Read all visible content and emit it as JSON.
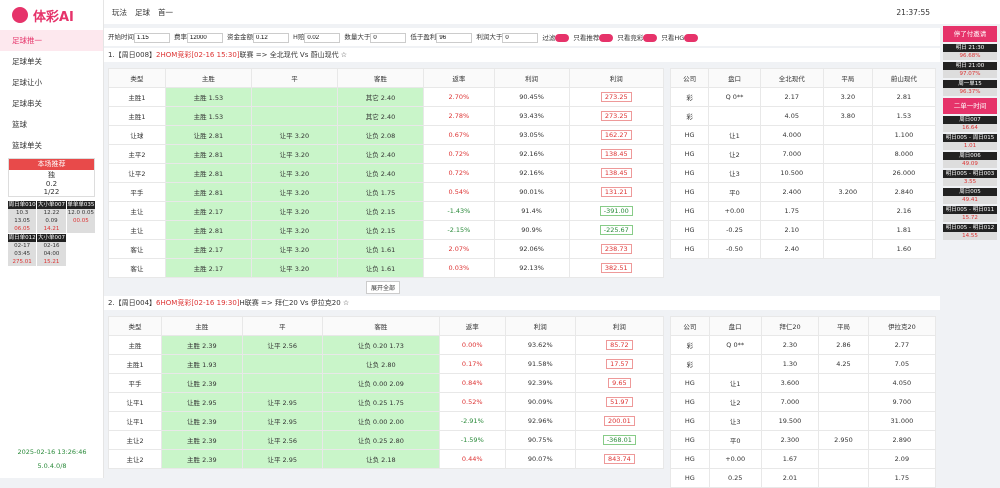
{
  "sidebar": {
    "logo": "体彩AI",
    "menu": [
      "足球推一",
      "足球单关",
      "足球让小",
      "足球串关",
      "篮球",
      "篮球单关"
    ],
    "panel_title": "本场推荐",
    "panel_lines": [
      "独",
      "0.2",
      "1/22"
    ],
    "cards": [
      {
        "title": "周日单010",
        "lines": [
          "10.3 13.05",
          "06.05"
        ]
      },
      {
        "title": "大小单007",
        "lines": [
          "12.22 0.09",
          "14.21"
        ]
      },
      {
        "title": "单单单035",
        "lines": [
          "12.0 0.05",
          "00.05"
        ]
      },
      {
        "title": "周日单012",
        "lines": [
          "02-17 03:45",
          "275.01"
        ]
      },
      {
        "title": "大小单007",
        "lines": [
          "02-16 04:00",
          "15.21"
        ]
      }
    ],
    "datetime": "2025-02-16 13:26:46",
    "version": "5.0.4.0/8"
  },
  "topbar": {
    "crumbs": [
      "玩法",
      "足球",
      "首一"
    ],
    "time": "21:37:55"
  },
  "filters": [
    {
      "label": "开始时间",
      "value": "1.15"
    },
    {
      "label": "费率",
      "value": "12000"
    },
    {
      "label": "资金金额",
      "value": "0.12"
    },
    {
      "label": "H赔",
      "value": "0.02"
    },
    {
      "label": "数量大于",
      "value": "0"
    },
    {
      "label": "低于盈利",
      "value": "96"
    },
    {
      "label": "利润大于",
      "value": "0"
    }
  ],
  "toggles": [
    "过滤",
    "只看推荐",
    "只看竞彩",
    "只看HG"
  ],
  "matches": [
    {
      "title": "1.【周日008】",
      "league": "2HOM竞彩[02-16 15:30]",
      "teams": "联赛 => 全北现代 Vs 蔚山现代 ☆",
      "columns": [
        "类型",
        "主胜",
        "平",
        "客胜",
        "返率",
        "利润",
        "利润"
      ],
      "rows": [
        [
          "主胜1",
          "主胜 1.53",
          "",
          "其它 2.40",
          "2.70%",
          "90.45%",
          "273.25"
        ],
        [
          "主胜1",
          "主胜 1.53",
          "",
          "其它 2.40",
          "2.78%",
          "93.43%",
          "273.25"
        ],
        [
          "让球",
          "让胜 2.81",
          "让平 3.20",
          "让负 2.08",
          "0.67%",
          "93.05%",
          "162.27"
        ],
        [
          "主平2",
          "主胜 2.81",
          "让平 3.20",
          "让负 2.40",
          "0.72%",
          "92.16%",
          "138.45"
        ],
        [
          "让平2",
          "主胜 2.81",
          "让平 3.20",
          "让负 2.40",
          "0.72%",
          "92.16%",
          "138.45"
        ],
        [
          "平手",
          "主胜 2.81",
          "让平 3.20",
          "让负 1.75",
          "0.54%",
          "90.01%",
          "131.21"
        ],
        [
          "主让",
          "主胜 2.17",
          "让平 3.20",
          "让负 2.15",
          "-1.43%",
          "91.4%",
          "-391.00"
        ],
        [
          "主让",
          "主胜 2.81",
          "让平 3.20",
          "让负 2.15",
          "-2.15%",
          "90.9%",
          "-225.67"
        ],
        [
          "客让",
          "主胜 2.17",
          "让平 3.20",
          "让负 1.61",
          "2.07%",
          "92.06%",
          "238.73"
        ],
        [
          "客让",
          "主胜 2.17",
          "让平 3.20",
          "让负 1.61",
          "0.03%",
          "92.13%",
          "382.51"
        ]
      ],
      "more": "展开全部",
      "side_columns": [
        "公司",
        "盘口",
        "全北现代",
        "平局",
        "蔚山现代"
      ],
      "side_rows": [
        [
          "彩",
          "Q 0**",
          "2.17",
          "3.20",
          "2.81"
        ],
        [
          "彩",
          "",
          "4.05",
          "3.80",
          "1.53"
        ],
        [
          "HG",
          "让1",
          "4.000",
          "",
          "1.100"
        ],
        [
          "HG",
          "让2",
          "7.000",
          "",
          "8.000"
        ],
        [
          "HG",
          "让3",
          "10.500",
          "",
          "26.000"
        ],
        [
          "HG",
          "平0",
          "2.400",
          "3.200",
          "2.840"
        ],
        [
          "HG",
          "+0.00",
          "1.75",
          "",
          "2.16"
        ],
        [
          "HG",
          "-0.25",
          "2.10",
          "",
          "1.81"
        ],
        [
          "HG",
          "-0.50",
          "2.40",
          "",
          "1.60"
        ]
      ]
    },
    {
      "title": "2.【周日004】",
      "league": "6HOM竞彩[02-16 19:30]",
      "teams": "H联赛 => 拜仁20 Vs 伊拉克20 ☆",
      "columns": [
        "类型",
        "主胜",
        "平",
        "客胜",
        "返率",
        "利润",
        "利润"
      ],
      "rows": [
        [
          "主胜",
          "主胜 2.39",
          "让平 2.56",
          "让负 0.20 1.73",
          "0.00%",
          "93.62%",
          "85.72"
        ],
        [
          "主胜1",
          "主胜 1.93",
          "",
          "让负 2.80",
          "0.17%",
          "91.58%",
          "17.57"
        ],
        [
          "平手",
          "让胜 2.39",
          "",
          "让负 0.00 2.09",
          "0.84%",
          "92.39%",
          "9.65"
        ],
        [
          "让平1",
          "让胜 2.95",
          "让平 2.95",
          "让负 0.25 1.75",
          "0.52%",
          "90.09%",
          "51.97"
        ],
        [
          "让平1",
          "让胜 2.39",
          "让平 2.95",
          "让负 0.00 2.00",
          "-2.91%",
          "92.96%",
          "200.01"
        ],
        [
          "主让2",
          "主胜 2.39",
          "让平 2.56",
          "让负 0.25 2.80",
          "-1.59%",
          "90.75%",
          "-368.01"
        ],
        [
          "主让2",
          "主胜 2.39",
          "让平 2.95",
          "让负 2.18",
          "0.44%",
          "90.07%",
          "843.74"
        ]
      ],
      "side_columns": [
        "公司",
        "盘口",
        "拜仁20",
        "平局",
        "伊拉克20"
      ],
      "side_rows": [
        [
          "彩",
          "Q 0**",
          "2.30",
          "2.86",
          "2.77"
        ],
        [
          "彩",
          "",
          "1.30",
          "4.25",
          "7.05"
        ],
        [
          "HG",
          "让1",
          "3.600",
          "",
          "4.050"
        ],
        [
          "HG",
          "让2",
          "7.000",
          "",
          "9.700"
        ],
        [
          "HG",
          "让3",
          "19.500",
          "",
          "31.000"
        ],
        [
          "HG",
          "平0",
          "2.300",
          "2.950",
          "2.890"
        ],
        [
          "HG",
          "+0.00",
          "1.67",
          "",
          "2.09"
        ],
        [
          "HG",
          "0.25",
          "2.01",
          "",
          "1.75"
        ]
      ]
    }
  ],
  "right_panel": {
    "button": "停了付邀请",
    "cards": [
      {
        "title": "明日 21:30",
        "lines": [
          "96.68%"
        ]
      },
      {
        "title": "明日 21:00",
        "lines": [
          "97.07%"
        ]
      },
      {
        "title": "周一单15",
        "lines": [
          "96.37%"
        ]
      }
    ],
    "button2": "二单一时间",
    "list": [
      {
        "title": "周日007",
        "lines": [
          "16.64"
        ]
      },
      {
        "title": "明日005 - 周日015",
        "lines": [
          "1.01"
        ]
      },
      {
        "title": "周日006",
        "lines": [
          "49.09"
        ]
      },
      {
        "title": "明日005 - 明日003",
        "lines": [
          "3.55"
        ]
      },
      {
        "title": "周日005",
        "lines": [
          "49.41"
        ]
      },
      {
        "title": "明日005 - 明日011",
        "lines": [
          "15.72"
        ]
      },
      {
        "title": "明日005 - 明日012",
        "lines": [
          "14.55"
        ]
      }
    ]
  }
}
